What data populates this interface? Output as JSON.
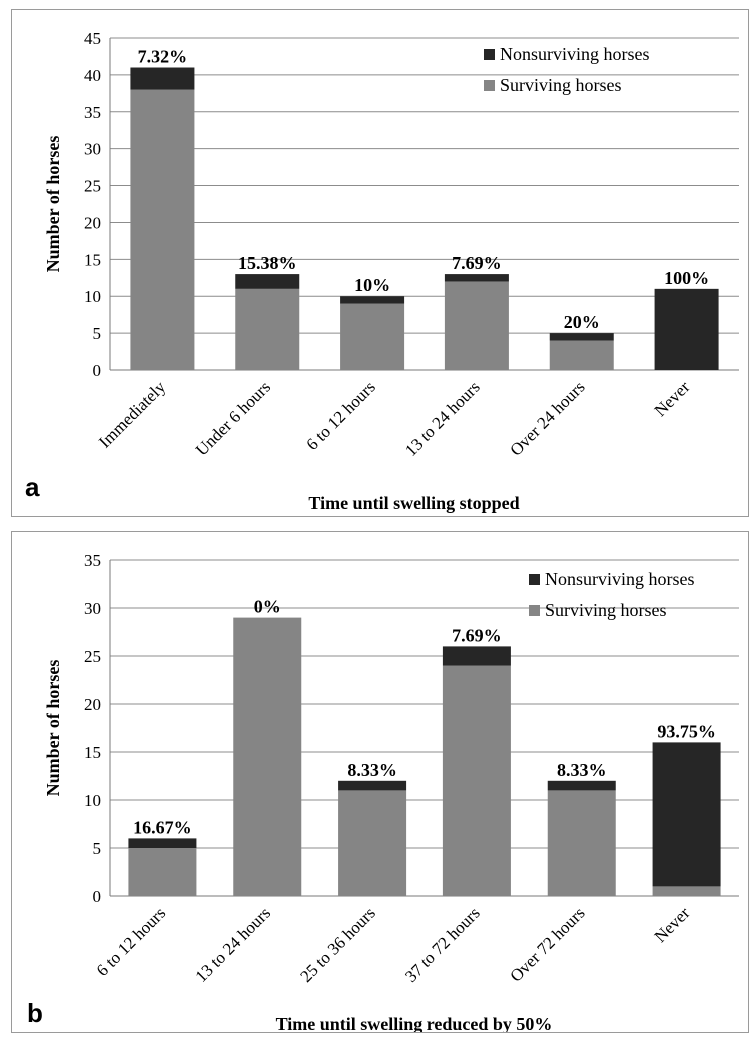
{
  "colors": {
    "surviving": "#858585",
    "nonsurviving": "#262626",
    "grid": "#8c8c8c",
    "axis": "#7a7a7a"
  },
  "chart_data": [
    {
      "type": "bar",
      "stacked": true,
      "panel_label": "a",
      "title": "",
      "xlabel": "Time until swelling stopped",
      "ylabel": "Number of horses",
      "ylim": [
        0,
        45
      ],
      "ytick_step": 5,
      "grid": true,
      "legend_position": "top-right",
      "categories": [
        "Immediately",
        "Under 6 hours",
        "6 to 12 hours",
        "13 to 24 hours",
        "Over 24 hours",
        "Never"
      ],
      "series": [
        {
          "name": "Surviving horses",
          "values": [
            38,
            11,
            9,
            12,
            4,
            0
          ]
        },
        {
          "name": "Nonsurviving horses",
          "values": [
            3,
            2,
            1,
            1,
            1,
            11
          ]
        }
      ],
      "bar_labels": [
        "7.32%",
        "15.38%",
        "10%",
        "7.69%",
        "20%",
        "100%"
      ]
    },
    {
      "type": "bar",
      "stacked": true,
      "panel_label": "b",
      "title": "",
      "xlabel": "Time until swelling reduced by 50%",
      "ylabel": "Number of horses",
      "ylim": [
        0,
        35
      ],
      "ytick_step": 5,
      "grid": true,
      "legend_position": "top-right",
      "categories": [
        "6 to 12 hours",
        "13 to 24 hours",
        "25 to 36 hours",
        "37 to 72 hours",
        "Over 72 hours",
        "Never"
      ],
      "series": [
        {
          "name": "Surviving horses",
          "values": [
            5,
            29,
            11,
            24,
            11,
            1
          ]
        },
        {
          "name": "Nonsurviving horses",
          "values": [
            1,
            0,
            1,
            2,
            1,
            15
          ]
        }
      ],
      "bar_labels": [
        "16.67%",
        "0%",
        "8.33%",
        "7.69%",
        "8.33%",
        "93.75%"
      ]
    }
  ]
}
